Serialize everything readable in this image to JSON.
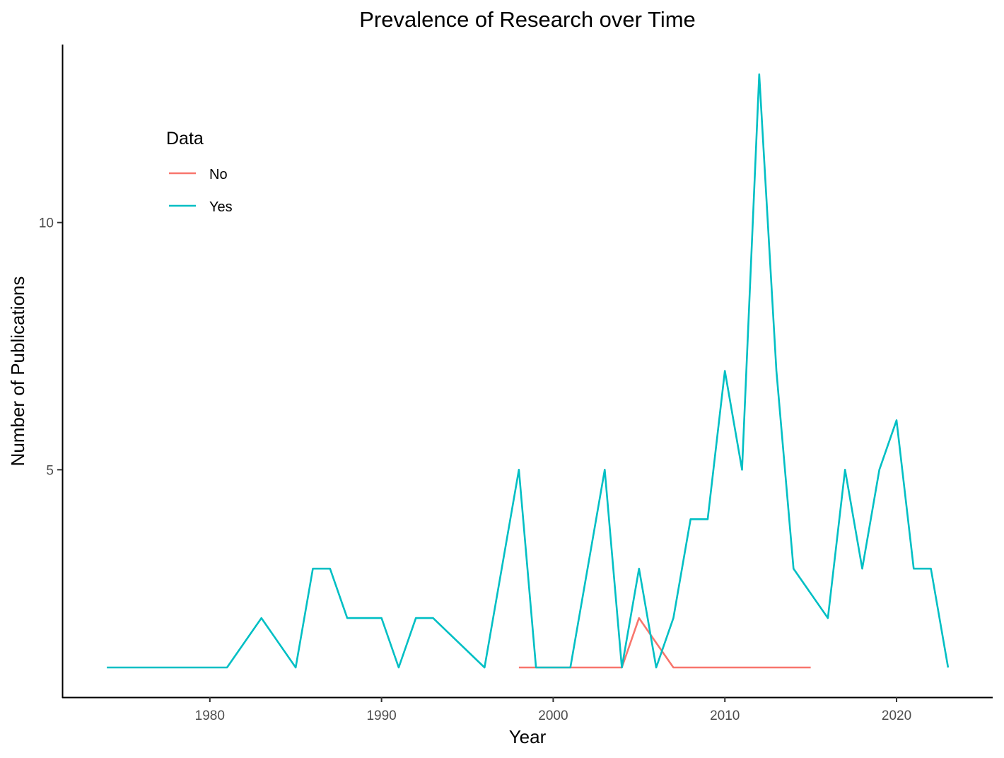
{
  "chart_data": {
    "type": "line",
    "title": "Prevalence of Research over Time",
    "xlabel": "Year",
    "ylabel": "Number of Publications",
    "xlim": [
      1971.4,
      2025.6
    ],
    "ylim": [
      0.4,
      13.6
    ],
    "x_ticks": [
      1980,
      1990,
      2000,
      2010,
      2020
    ],
    "y_ticks": [
      5,
      10
    ],
    "grid": false,
    "legend": {
      "title": "Data",
      "position": "top-left inside"
    },
    "series": [
      {
        "name": "No",
        "color": "#F8766D",
        "points": [
          [
            1998,
            1
          ],
          [
            1999,
            1
          ],
          [
            2000,
            1
          ],
          [
            2001,
            1
          ],
          [
            2002,
            1
          ],
          [
            2003,
            1
          ],
          [
            2004,
            1
          ],
          [
            2005,
            2
          ],
          [
            2006,
            1.5
          ],
          [
            2007,
            1
          ],
          [
            2008,
            1
          ],
          [
            2009,
            1
          ],
          [
            2010,
            1
          ],
          [
            2011,
            1
          ],
          [
            2012,
            1
          ],
          [
            2013,
            1
          ],
          [
            2014,
            1
          ],
          [
            2015,
            1
          ]
        ]
      },
      {
        "name": "Yes",
        "color": "#00BFC4",
        "points": [
          [
            1974,
            1
          ],
          [
            1975,
            1
          ],
          [
            1976,
            1
          ],
          [
            1977,
            1
          ],
          [
            1978,
            1
          ],
          [
            1979,
            1
          ],
          [
            1980,
            1
          ],
          [
            1981,
            1
          ],
          [
            1983,
            2
          ],
          [
            1985,
            1
          ],
          [
            1986,
            3
          ],
          [
            1987,
            3
          ],
          [
            1988,
            2
          ],
          [
            1989,
            2
          ],
          [
            1990,
            2
          ],
          [
            1991,
            1
          ],
          [
            1992,
            2
          ],
          [
            1993,
            2
          ],
          [
            1996,
            1
          ],
          [
            1998,
            5
          ],
          [
            1999,
            1
          ],
          [
            2000,
            1
          ],
          [
            2001,
            1
          ],
          [
            2003,
            5
          ],
          [
            2004,
            1
          ],
          [
            2005,
            3
          ],
          [
            2006,
            1
          ],
          [
            2007,
            2
          ],
          [
            2008,
            4
          ],
          [
            2009,
            4
          ],
          [
            2010,
            7
          ],
          [
            2011,
            5
          ],
          [
            2012,
            13
          ],
          [
            2013,
            7
          ],
          [
            2014,
            3
          ],
          [
            2016,
            2
          ],
          [
            2017,
            5
          ],
          [
            2018,
            3
          ],
          [
            2019,
            5
          ],
          [
            2020,
            6
          ],
          [
            2021,
            3
          ],
          [
            2022,
            3
          ],
          [
            2023,
            1
          ]
        ]
      }
    ]
  }
}
